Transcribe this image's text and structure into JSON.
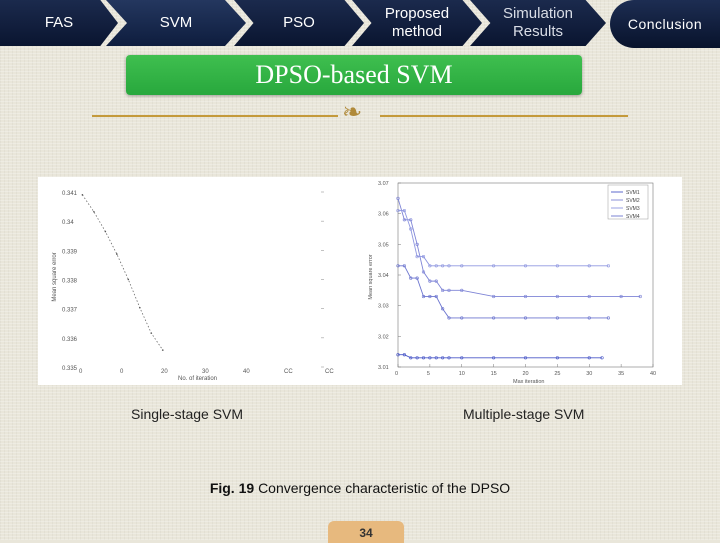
{
  "nav": {
    "items": [
      {
        "label": "FAS"
      },
      {
        "label": "SVM"
      },
      {
        "label": "PSO"
      },
      {
        "label": "Proposed\nmethod"
      },
      {
        "label": "Simulation\nResults"
      }
    ],
    "conclusion": "Conclusion"
  },
  "title": "DPSO-based SVM",
  "ornament_icon": "scroll-ornament-icon",
  "colors": {
    "nav": "#0a1530",
    "banner": "#2fb144",
    "rule": "#c49a3c",
    "page_tab": "#e7b97e"
  },
  "chart_data": [
    {
      "type": "line",
      "xlabel": "No. of iteration",
      "ylabel": "Mean square error",
      "x_ticks": [
        "0",
        "0",
        "20",
        "30",
        "40",
        "CC",
        "CC"
      ],
      "y_ticks": [
        "0.341",
        "0.34",
        "0.339",
        "0.338",
        "0.337",
        "0.336",
        "0.335"
      ],
      "series": [
        {
          "x": [
            0,
            1,
            2,
            3,
            4,
            5,
            6,
            7
          ],
          "values": [
            0.3411,
            0.3405,
            0.3398,
            0.339,
            0.3381,
            0.3371,
            0.3362,
            0.3356
          ]
        }
      ]
    },
    {
      "type": "line",
      "xlabel": "Max iteration",
      "ylabel": "Mean square error",
      "x_ticks": [
        "0",
        "5",
        "10",
        "15",
        "20",
        "25",
        "30",
        "35",
        "40"
      ],
      "y_ticks": [
        "3.01",
        "3.02",
        "3.03",
        "3.04",
        "3.05",
        "3.06",
        "3.07"
      ],
      "xlim": [
        0,
        40
      ],
      "ylim": [
        3.01,
        3.07
      ],
      "legend": "top-right",
      "series": [
        {
          "name": "SVM1",
          "x": [
            0,
            1,
            2,
            3,
            4,
            5,
            6,
            7,
            8,
            10,
            15,
            20,
            25,
            30,
            32
          ],
          "values": [
            3.014,
            3.014,
            3.013,
            3.013,
            3.013,
            3.013,
            3.013,
            3.013,
            3.013,
            3.013,
            3.013,
            3.013,
            3.013,
            3.013,
            3.013
          ]
        },
        {
          "name": "SVM2",
          "x": [
            0,
            1,
            2,
            3,
            4,
            5,
            6,
            7,
            8,
            10,
            15,
            20,
            25,
            30,
            35,
            38
          ],
          "values": [
            3.065,
            3.058,
            3.058,
            3.05,
            3.041,
            3.038,
            3.038,
            3.035,
            3.035,
            3.035,
            3.033,
            3.033,
            3.033,
            3.033,
            3.033,
            3.033
          ]
        },
        {
          "name": "SVM3",
          "x": [
            0,
            1,
            2,
            3,
            4,
            5,
            6,
            7,
            8,
            10,
            15,
            20,
            25,
            30,
            33
          ],
          "values": [
            3.061,
            3.061,
            3.055,
            3.046,
            3.046,
            3.043,
            3.043,
            3.043,
            3.043,
            3.043,
            3.043,
            3.043,
            3.043,
            3.043,
            3.043
          ]
        },
        {
          "name": "SVM4",
          "x": [
            0,
            1,
            2,
            3,
            4,
            5,
            6,
            7,
            8,
            10,
            15,
            20,
            25,
            30,
            33
          ],
          "values": [
            3.043,
            3.043,
            3.039,
            3.039,
            3.033,
            3.033,
            3.033,
            3.029,
            3.026,
            3.026,
            3.026,
            3.026,
            3.026,
            3.026,
            3.026
          ]
        }
      ]
    }
  ],
  "captions": {
    "left": "Single-stage  SVM",
    "right": "Multiple-stage  SVM",
    "fig_label": "Fig. 19",
    "fig_text": "Convergence characteristic of the DPSO"
  },
  "page_number": "34"
}
